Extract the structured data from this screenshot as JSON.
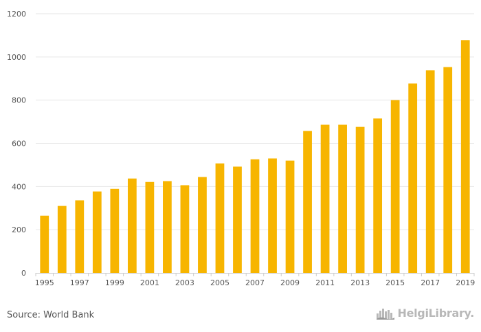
{
  "colors": {
    "bar": "#F7B500",
    "grid": "#e6e6e6",
    "axis": "#cccccc",
    "text": "#555555"
  },
  "chart_data": {
    "type": "bar",
    "title": "",
    "xlabel": "",
    "ylabel": "",
    "ylim": [
      0,
      1200
    ],
    "yticks": [
      0,
      200,
      400,
      600,
      800,
      1000,
      1200
    ],
    "grid": true,
    "categories": [
      "1995",
      "1996",
      "1997",
      "1998",
      "1999",
      "2000",
      "2001",
      "2002",
      "2003",
      "2004",
      "2005",
      "2006",
      "2007",
      "2008",
      "2009",
      "2010",
      "2011",
      "2012",
      "2013",
      "2014",
      "2015",
      "2016",
      "2017",
      "2018",
      "2019"
    ],
    "xtick_labels": [
      "1995",
      "1997",
      "1999",
      "2001",
      "2003",
      "2005",
      "2007",
      "2009",
      "2011",
      "2013",
      "2015",
      "2017",
      "2019"
    ],
    "values": [
      265,
      310,
      336,
      377,
      389,
      437,
      421,
      425,
      406,
      444,
      507,
      492,
      526,
      530,
      520,
      657,
      686,
      686,
      676,
      715,
      800,
      877,
      938,
      953,
      1078
    ]
  },
  "footer": {
    "source": "Source: World Bank",
    "logo_text": "HelgiLibrary.",
    "logo_icon": "city-skyline-icon"
  }
}
